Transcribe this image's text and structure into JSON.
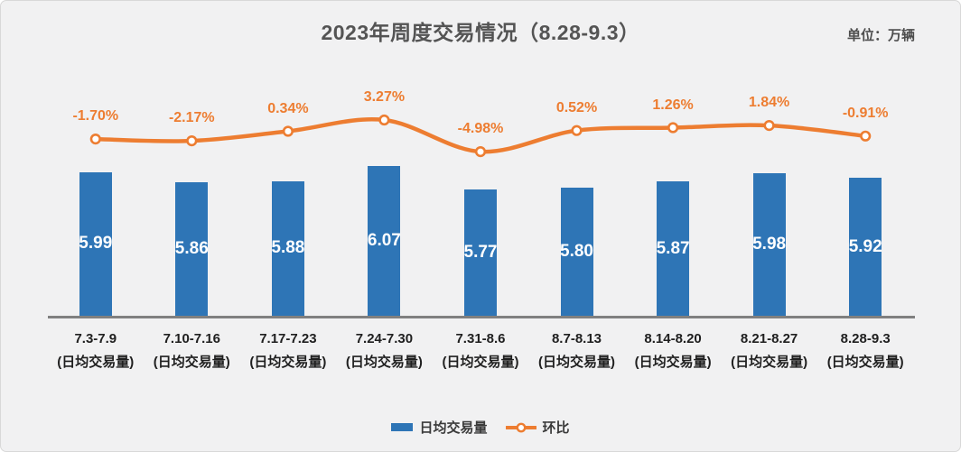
{
  "header": {
    "title": "2023年周度交易情况（8.28-9.3）",
    "unit_label": "单位：万辆"
  },
  "legend": {
    "bar_series_label": "日均交易量",
    "line_series_label": "环比"
  },
  "colors": {
    "background": "#F1F1F2",
    "bar": "#2E75B6",
    "line": "#ED7D31",
    "axis_line": "#808080",
    "title_text": "#545454",
    "bar_value_text": "#FFFFFF",
    "category_text": "#1F1F1F",
    "pct_label_text": "#ED7D31"
  },
  "chart_data": {
    "type": "bar",
    "combo": "bar+line",
    "title": "2023年周度交易情况（8.28-9.3）",
    "unit": "万辆",
    "categories": [
      "7.3-7.9",
      "7.10-7.16",
      "7.17-7.23",
      "7.24-7.30",
      "7.31-8.6",
      "8.7-8.13",
      "8.14-8.20",
      "8.21-8.27",
      "8.28-9.3"
    ],
    "category_sublabel": "(日均交易量)",
    "series": [
      {
        "name": "日均交易量",
        "type": "bar",
        "values": [
          5.99,
          5.86,
          5.88,
          6.07,
          5.77,
          5.8,
          5.87,
          5.98,
          5.92
        ],
        "labels": [
          "5.99",
          "5.86",
          "5.88",
          "6.07",
          "5.77",
          "5.80",
          "5.87",
          "5.98",
          "5.92"
        ]
      },
      {
        "name": "环比",
        "type": "line",
        "values": [
          -1.7,
          -2.17,
          0.34,
          3.27,
          -4.98,
          0.52,
          1.26,
          1.84,
          -0.91
        ],
        "labels": [
          "-1.70%",
          "-2.17%",
          "0.34%",
          "3.27%",
          "-4.98%",
          "0.52%",
          "1.26%",
          "1.84%",
          "-0.91%"
        ]
      }
    ],
    "layout_hints": {
      "bar_axis_min": 4.17,
      "grid": "off",
      "value_labels": "inside-center (bar), above-marker (line)",
      "legend_position": "bottom-center"
    }
  }
}
